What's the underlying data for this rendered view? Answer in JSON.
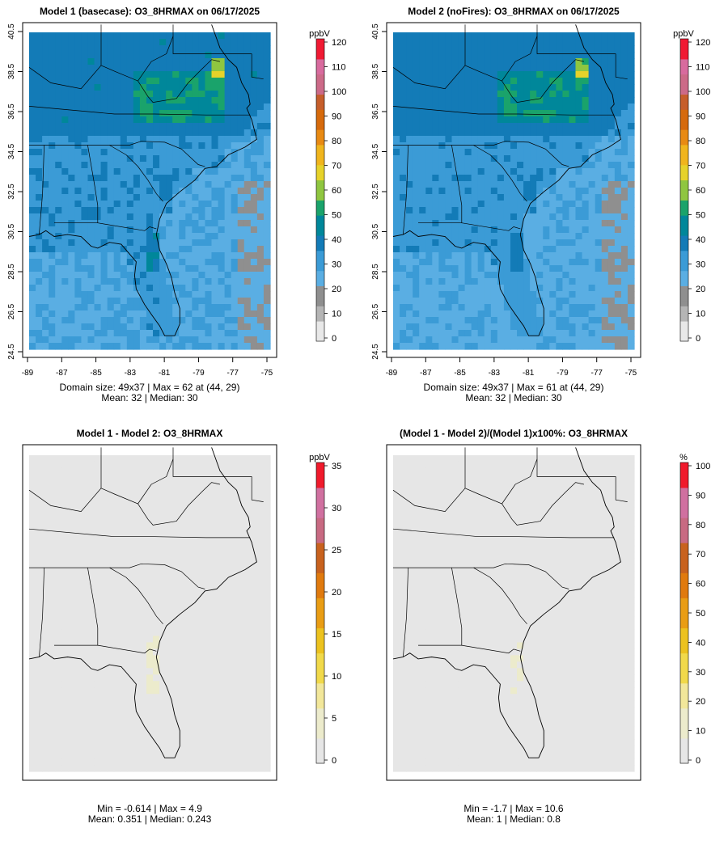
{
  "panels": [
    {
      "title": "Model 1 (basecase): O3_8HRMAX on 06/17/2025",
      "info1": "Domain size: 49x37 | Max = 62 at (44, 29)",
      "info2": "Mean: 32 |  Median: 30",
      "field": "ozone_model1",
      "show_axes": true,
      "colorbar": {
        "unit": "ppbV",
        "max": 120,
        "ticks": [
          "0",
          "10",
          "20",
          "30",
          "40",
          "50",
          "60",
          "70",
          "80",
          "90",
          "100",
          "110",
          "120"
        ],
        "palette": "ozone"
      }
    },
    {
      "title": "Model 2 (noFires): O3_8HRMAX on 06/17/2025",
      "info1": "Domain size: 49x37 | Max = 61 at (44, 29)",
      "info2": "Mean: 32 |  Median: 30",
      "field": "ozone_model2",
      "show_axes": true,
      "colorbar": {
        "unit": "ppbV",
        "max": 120,
        "ticks": [
          "0",
          "10",
          "20",
          "30",
          "40",
          "50",
          "60",
          "70",
          "80",
          "90",
          "100",
          "110",
          "120"
        ],
        "palette": "ozone"
      }
    },
    {
      "title": "Model 1 - Model 2: O3_8HRMAX",
      "info1": "Min = -0.614 | Max = 4.9",
      "info2": "Mean: 0.351 |  Median: 0.243",
      "field": "difference",
      "show_axes": false,
      "colorbar": {
        "unit": "ppbV",
        "max": 35,
        "ticks": [
          "0",
          "5",
          "10",
          "15",
          "20",
          "25",
          "30",
          "35"
        ],
        "palette": "diff"
      }
    },
    {
      "title": "(Model 1 - Model 2)/(Model 1)x100%: O3_8HRMAX",
      "info1": "Min = -1.7 | Max = 10.6",
      "info2": "Mean: 1 |  Median: 0.8",
      "field": "percent",
      "show_axes": false,
      "colorbar": {
        "unit": "%",
        "max": 100,
        "ticks": [
          "0",
          "10",
          "20",
          "30",
          "40",
          "50",
          "60",
          "70",
          "80",
          "90",
          "100"
        ],
        "palette": "diff"
      }
    }
  ],
  "axes": {
    "lon_labels": [
      "-89",
      "-87",
      "-85",
      "-83",
      "-81",
      "-79",
      "-77",
      "-75"
    ],
    "lat_labels": [
      "24.5",
      "26.5",
      "28.5",
      "30.5",
      "32.5",
      "34.5",
      "36.5",
      "38.5",
      "40.5"
    ]
  },
  "colors": {
    "ozone_palette": [
      "#e8e8e8",
      "#b5b5b5",
      "#8f8f8f",
      "#5aaee3",
      "#3b9bd6",
      "#137bb7",
      "#00879a",
      "#1aa36b",
      "#8fc640",
      "#e6d22a",
      "#f0b51d",
      "#e88a13",
      "#d66a0c",
      "#c65e2b",
      "#cc6a88",
      "#d86b9e",
      "#f01a33"
    ],
    "diff_palette": [
      "#e6e6e6",
      "#ecebcc",
      "#f2e79a",
      "#f1d94a",
      "#ecc21f",
      "#e99d14",
      "#e07a0e",
      "#c8621e",
      "#c86a82",
      "#d070a0",
      "#f01a2c"
    ],
    "map_line": "#000000"
  }
}
